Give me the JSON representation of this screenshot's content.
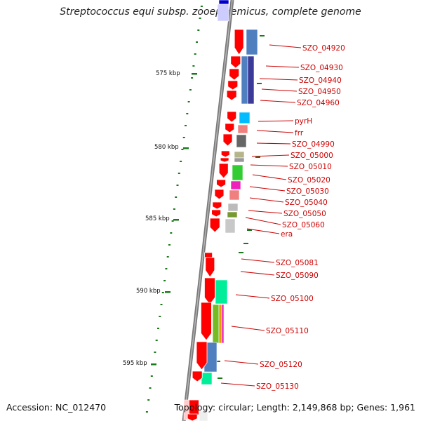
{
  "title": "Streptococcus equi subsp. zooepidemicus, complete genome",
  "footer": {
    "accession": "Accession: NC_012470",
    "summary": "Topology: circular; Length: 2,149,868 bp; Genes: 1,961"
  },
  "scale_labels": [
    "575 kbp",
    "580 kbp",
    "585 kbp",
    "590 kbp",
    "595 kbp"
  ],
  "genes": [
    "SZO_04920",
    "SZO_04930",
    "SZO_04940",
    "SZO_04950",
    "SZO_04960",
    "pyrH",
    "frr",
    "SZO_04990",
    "SZO_05000",
    "SZO_05010",
    "SZO_05020",
    "SZO_05030",
    "SZO_05040",
    "SZO_05050",
    "SZO_05060",
    "era",
    "SZO_05081",
    "SZO_05090",
    "SZO_05100",
    "SZO_05110",
    "SZO_05120",
    "SZO_05130"
  ],
  "colors": {
    "backbone": "#808080",
    "cds": "#ff0000",
    "label": "#cc0000",
    "ticks": "#1a7a1a"
  }
}
